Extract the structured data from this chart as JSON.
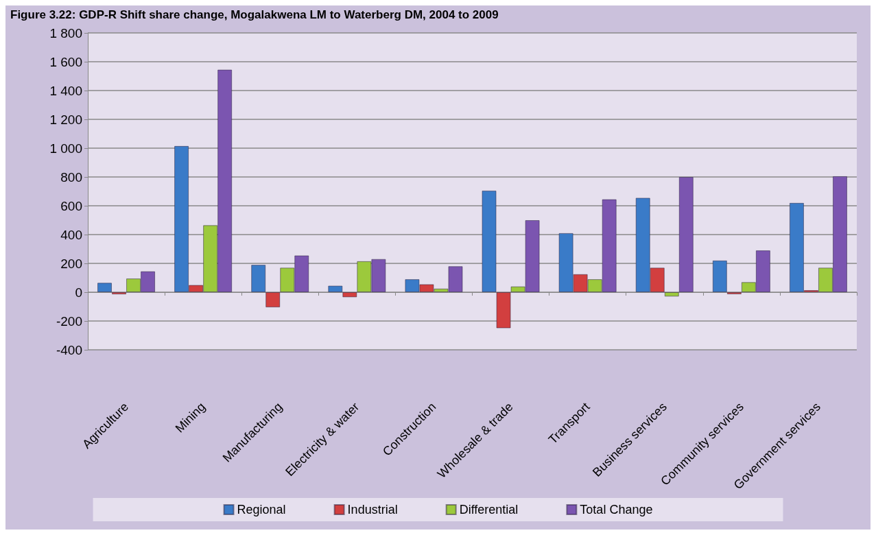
{
  "chart_data": {
    "type": "bar",
    "title": "Figure 3.22: GDP-R Shift share change, Mogalakwena LM to Waterberg DM, 2004 to 2009",
    "categories": [
      "Agriculture",
      "Mining",
      "Manufacturing",
      "Electricity & water",
      "Construction",
      "Wholesale & trade",
      "Transport",
      "Business services",
      "Community services",
      "Government services"
    ],
    "series": [
      {
        "name": "Regional",
        "color": "#3a7bc8",
        "values": [
          65,
          1015,
          190,
          45,
          90,
          705,
          410,
          655,
          220,
          620
        ]
      },
      {
        "name": "Industrial",
        "color": "#d23f3f",
        "values": [
          -15,
          50,
          -105,
          -35,
          55,
          -250,
          125,
          170,
          -5,
          5
        ]
      },
      {
        "name": "Differential",
        "color": "#9cc93c",
        "values": [
          95,
          465,
          170,
          215,
          25,
          40,
          90,
          -30,
          70,
          170
        ]
      },
      {
        "name": "Total Change",
        "color": "#7b55b0",
        "values": [
          145,
          1545,
          255,
          230,
          180,
          500,
          645,
          800,
          290,
          805
        ]
      }
    ],
    "ylim": [
      -400,
      1800
    ],
    "yticks": [
      {
        "value": -400,
        "label": "-400"
      },
      {
        "value": -200,
        "label": "-200"
      },
      0,
      200,
      400,
      600,
      800,
      {
        "value": 1000,
        "label": "1 000"
      },
      {
        "value": 1200,
        "label": "1 200"
      },
      {
        "value": 1400,
        "label": "1 400"
      },
      {
        "value": 1600,
        "label": "1 600"
      },
      {
        "value": 1800,
        "label": "1 800"
      }
    ],
    "grid": "y",
    "legend": "bottom"
  }
}
